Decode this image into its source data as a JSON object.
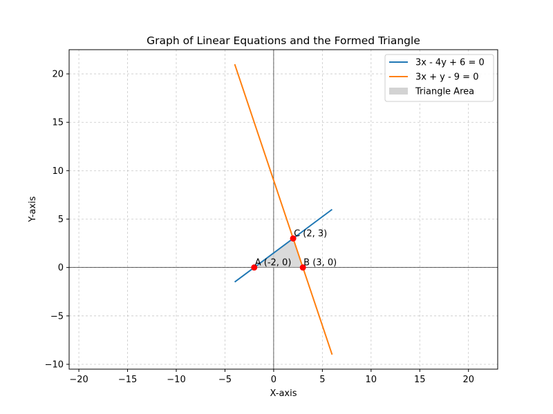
{
  "chart_data": {
    "type": "line",
    "title": "Graph of Linear Equations and the Formed Triangle",
    "xlabel": "X-axis",
    "ylabel": "Y-axis",
    "xlim": [
      -21,
      23
    ],
    "ylim": [
      -10.5,
      22.5
    ],
    "xticks": [
      -20,
      -15,
      -10,
      -5,
      0,
      5,
      10,
      15,
      20
    ],
    "yticks": [
      -10,
      -5,
      0,
      5,
      10,
      15,
      20
    ],
    "grid": true,
    "legend_position": "top-right",
    "series": [
      {
        "name": "3x - 4y + 6 = 0",
        "color": "#1f77b4",
        "x": [
          -4,
          6
        ],
        "y": [
          -1.5,
          6
        ]
      },
      {
        "name": "3x + y - 9 = 0",
        "color": "#ff7f0e",
        "x": [
          -4,
          6
        ],
        "y": [
          21,
          -9
        ]
      }
    ],
    "triangle": {
      "name": "Triangle Area",
      "color": "#d3d3d3",
      "vertices": [
        [
          -2,
          0
        ],
        [
          3,
          0
        ],
        [
          2,
          3
        ]
      ]
    },
    "points": [
      {
        "label": "A (-2, 0)",
        "x": -2,
        "y": 0,
        "color": "#ff0000"
      },
      {
        "label": "B (3, 0)",
        "x": 3,
        "y": 0,
        "color": "#ff0000"
      },
      {
        "label": "C (2, 3)",
        "x": 2,
        "y": 3,
        "color": "#ff0000"
      }
    ]
  }
}
